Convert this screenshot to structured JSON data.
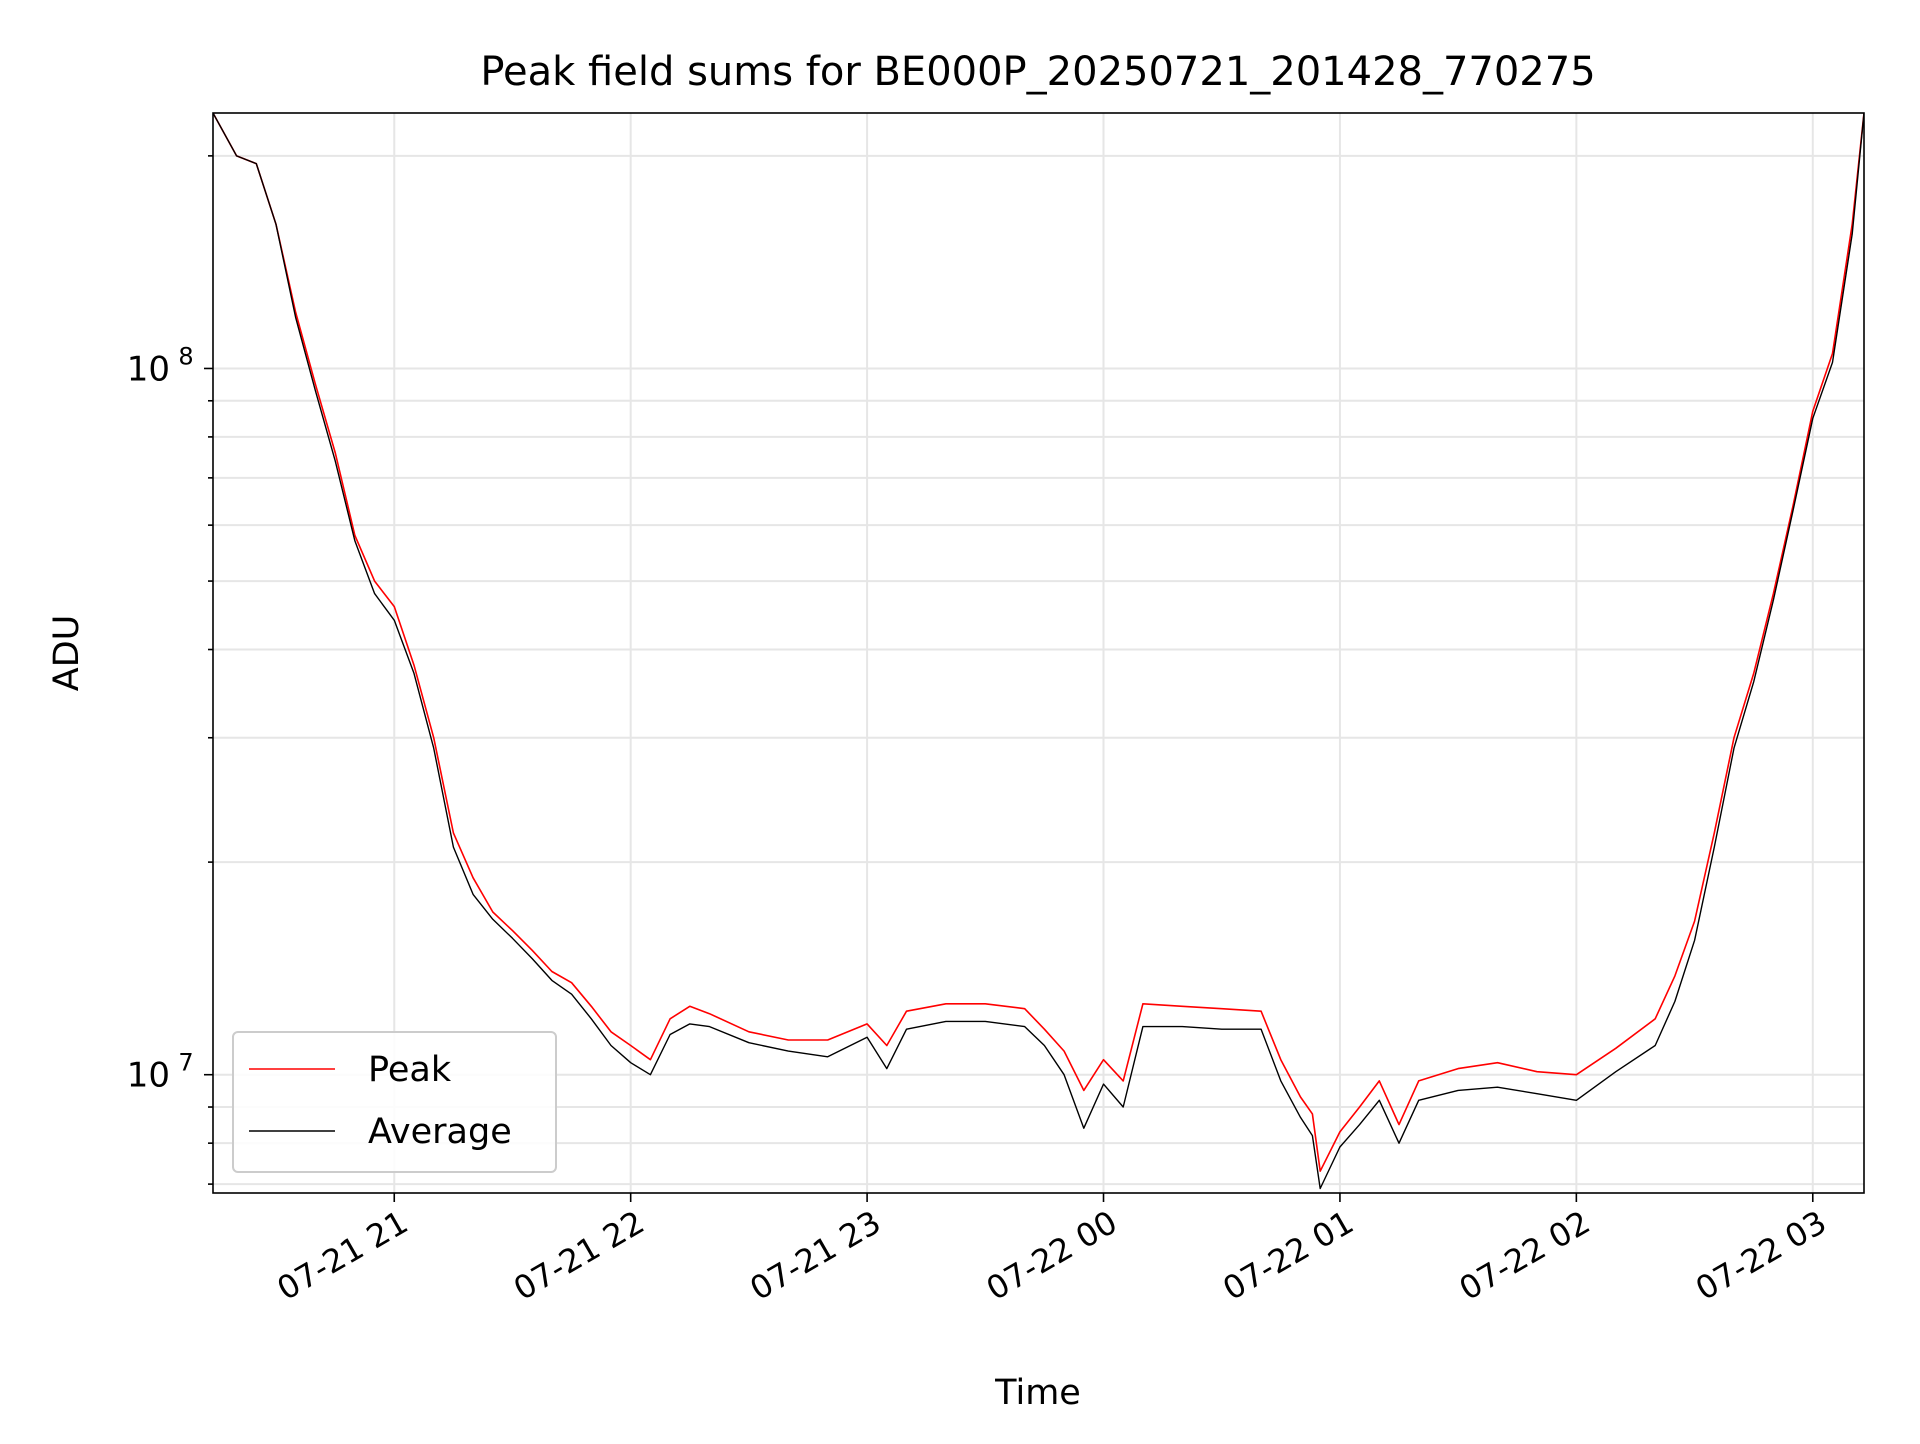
{
  "chart_data": {
    "type": "line",
    "title": "Peak field sums for BE000P_20250721_201428_770275",
    "xlabel": "Time",
    "ylabel": "ADU",
    "x_axis_type": "time",
    "y_scale": "log",
    "x_range": [
      "07-21 20:14",
      "07-22 03:13"
    ],
    "ylim": [
      6800000,
      230000000
    ],
    "x_ticks": [
      "07-21 21",
      "07-21 22",
      "07-21 23",
      "07-22 00",
      "07-22 01",
      "07-22 02",
      "07-22 03"
    ],
    "y_ticks": [
      {
        "value": 10000000,
        "base": "10",
        "exp": "7"
      },
      {
        "value": 100000000,
        "base": "10",
        "exp": "8"
      }
    ],
    "grid": true,
    "legend_position": "lower-left",
    "x": [
      "07-21 20:14",
      "07-21 20:20",
      "07-21 20:25",
      "07-21 20:30",
      "07-21 20:35",
      "07-21 20:40",
      "07-21 20:45",
      "07-21 20:50",
      "07-21 20:55",
      "07-21 21:00",
      "07-21 21:05",
      "07-21 21:10",
      "07-21 21:15",
      "07-21 21:20",
      "07-21 21:25",
      "07-21 21:30",
      "07-21 21:35",
      "07-21 21:40",
      "07-21 21:45",
      "07-21 21:50",
      "07-21 21:55",
      "07-21 22:00",
      "07-21 22:05",
      "07-21 22:10",
      "07-21 22:15",
      "07-21 22:20",
      "07-21 22:30",
      "07-21 22:40",
      "07-21 22:50",
      "07-21 23:00",
      "07-21 23:05",
      "07-21 23:10",
      "07-21 23:20",
      "07-21 23:30",
      "07-21 23:40",
      "07-21 23:45",
      "07-21 23:50",
      "07-21 23:55",
      "07-22 00:00",
      "07-22 00:05",
      "07-22 00:10",
      "07-22 00:20",
      "07-22 00:30",
      "07-22 00:40",
      "07-22 00:45",
      "07-22 00:50",
      "07-22 00:53",
      "07-22 00:55",
      "07-22 01:00",
      "07-22 01:05",
      "07-22 01:10",
      "07-22 01:15",
      "07-22 01:20",
      "07-22 01:30",
      "07-22 01:40",
      "07-22 01:50",
      "07-22 02:00",
      "07-22 02:10",
      "07-22 02:20",
      "07-22 02:25",
      "07-22 02:30",
      "07-22 02:35",
      "07-22 02:40",
      "07-22 02:45",
      "07-22 02:50",
      "07-22 02:55",
      "07-22 03:00",
      "07-22 03:05",
      "07-22 03:10",
      "07-22 03:13"
    ],
    "series": [
      {
        "name": "Peak",
        "color": "#ff0000",
        "values": [
          230000000,
          200000000,
          195000000,
          160000000,
          120000000,
          95000000,
          76000000,
          58000000,
          50000000,
          46000000,
          38000000,
          30000000,
          22000000,
          19000000,
          17000000,
          16000000,
          15000000,
          14000000,
          13500000,
          12500000,
          11500000,
          11000000,
          10500000,
          12000000,
          12500000,
          12200000,
          11500000,
          11200000,
          11200000,
          11800000,
          11000000,
          12300000,
          12600000,
          12600000,
          12400000,
          11600000,
          10800000,
          9500000,
          10500000,
          9800000,
          12600000,
          12500000,
          12400000,
          12300000,
          10500000,
          9300000,
          8800000,
          7300000,
          8300000,
          9000000,
          9800000,
          8500000,
          9800000,
          10200000,
          10400000,
          10100000,
          10000000,
          10900000,
          12000000,
          13800000,
          16500000,
          22000000,
          30000000,
          37000000,
          48000000,
          64000000,
          87000000,
          105000000,
          160000000,
          230000000
        ]
      },
      {
        "name": "Average",
        "color": "#000000",
        "values": [
          230000000,
          200000000,
          195000000,
          160000000,
          118000000,
          93000000,
          74000000,
          57000000,
          48000000,
          44000000,
          37000000,
          29000000,
          21000000,
          18000000,
          16600000,
          15600000,
          14600000,
          13600000,
          13000000,
          12000000,
          11000000,
          10400000,
          10000000,
          11400000,
          11800000,
          11700000,
          11100000,
          10800000,
          10600000,
          11300000,
          10200000,
          11600000,
          11900000,
          11900000,
          11700000,
          11000000,
          10000000,
          8400000,
          9700000,
          9000000,
          11700000,
          11700000,
          11600000,
          11600000,
          9800000,
          8700000,
          8200000,
          6900000,
          7900000,
          8500000,
          9200000,
          8000000,
          9200000,
          9500000,
          9600000,
          9400000,
          9200000,
          10100000,
          11000000,
          12700000,
          15500000,
          21000000,
          29000000,
          36000000,
          47000000,
          63000000,
          85000000,
          102000000,
          155000000,
          230000000
        ]
      }
    ]
  }
}
